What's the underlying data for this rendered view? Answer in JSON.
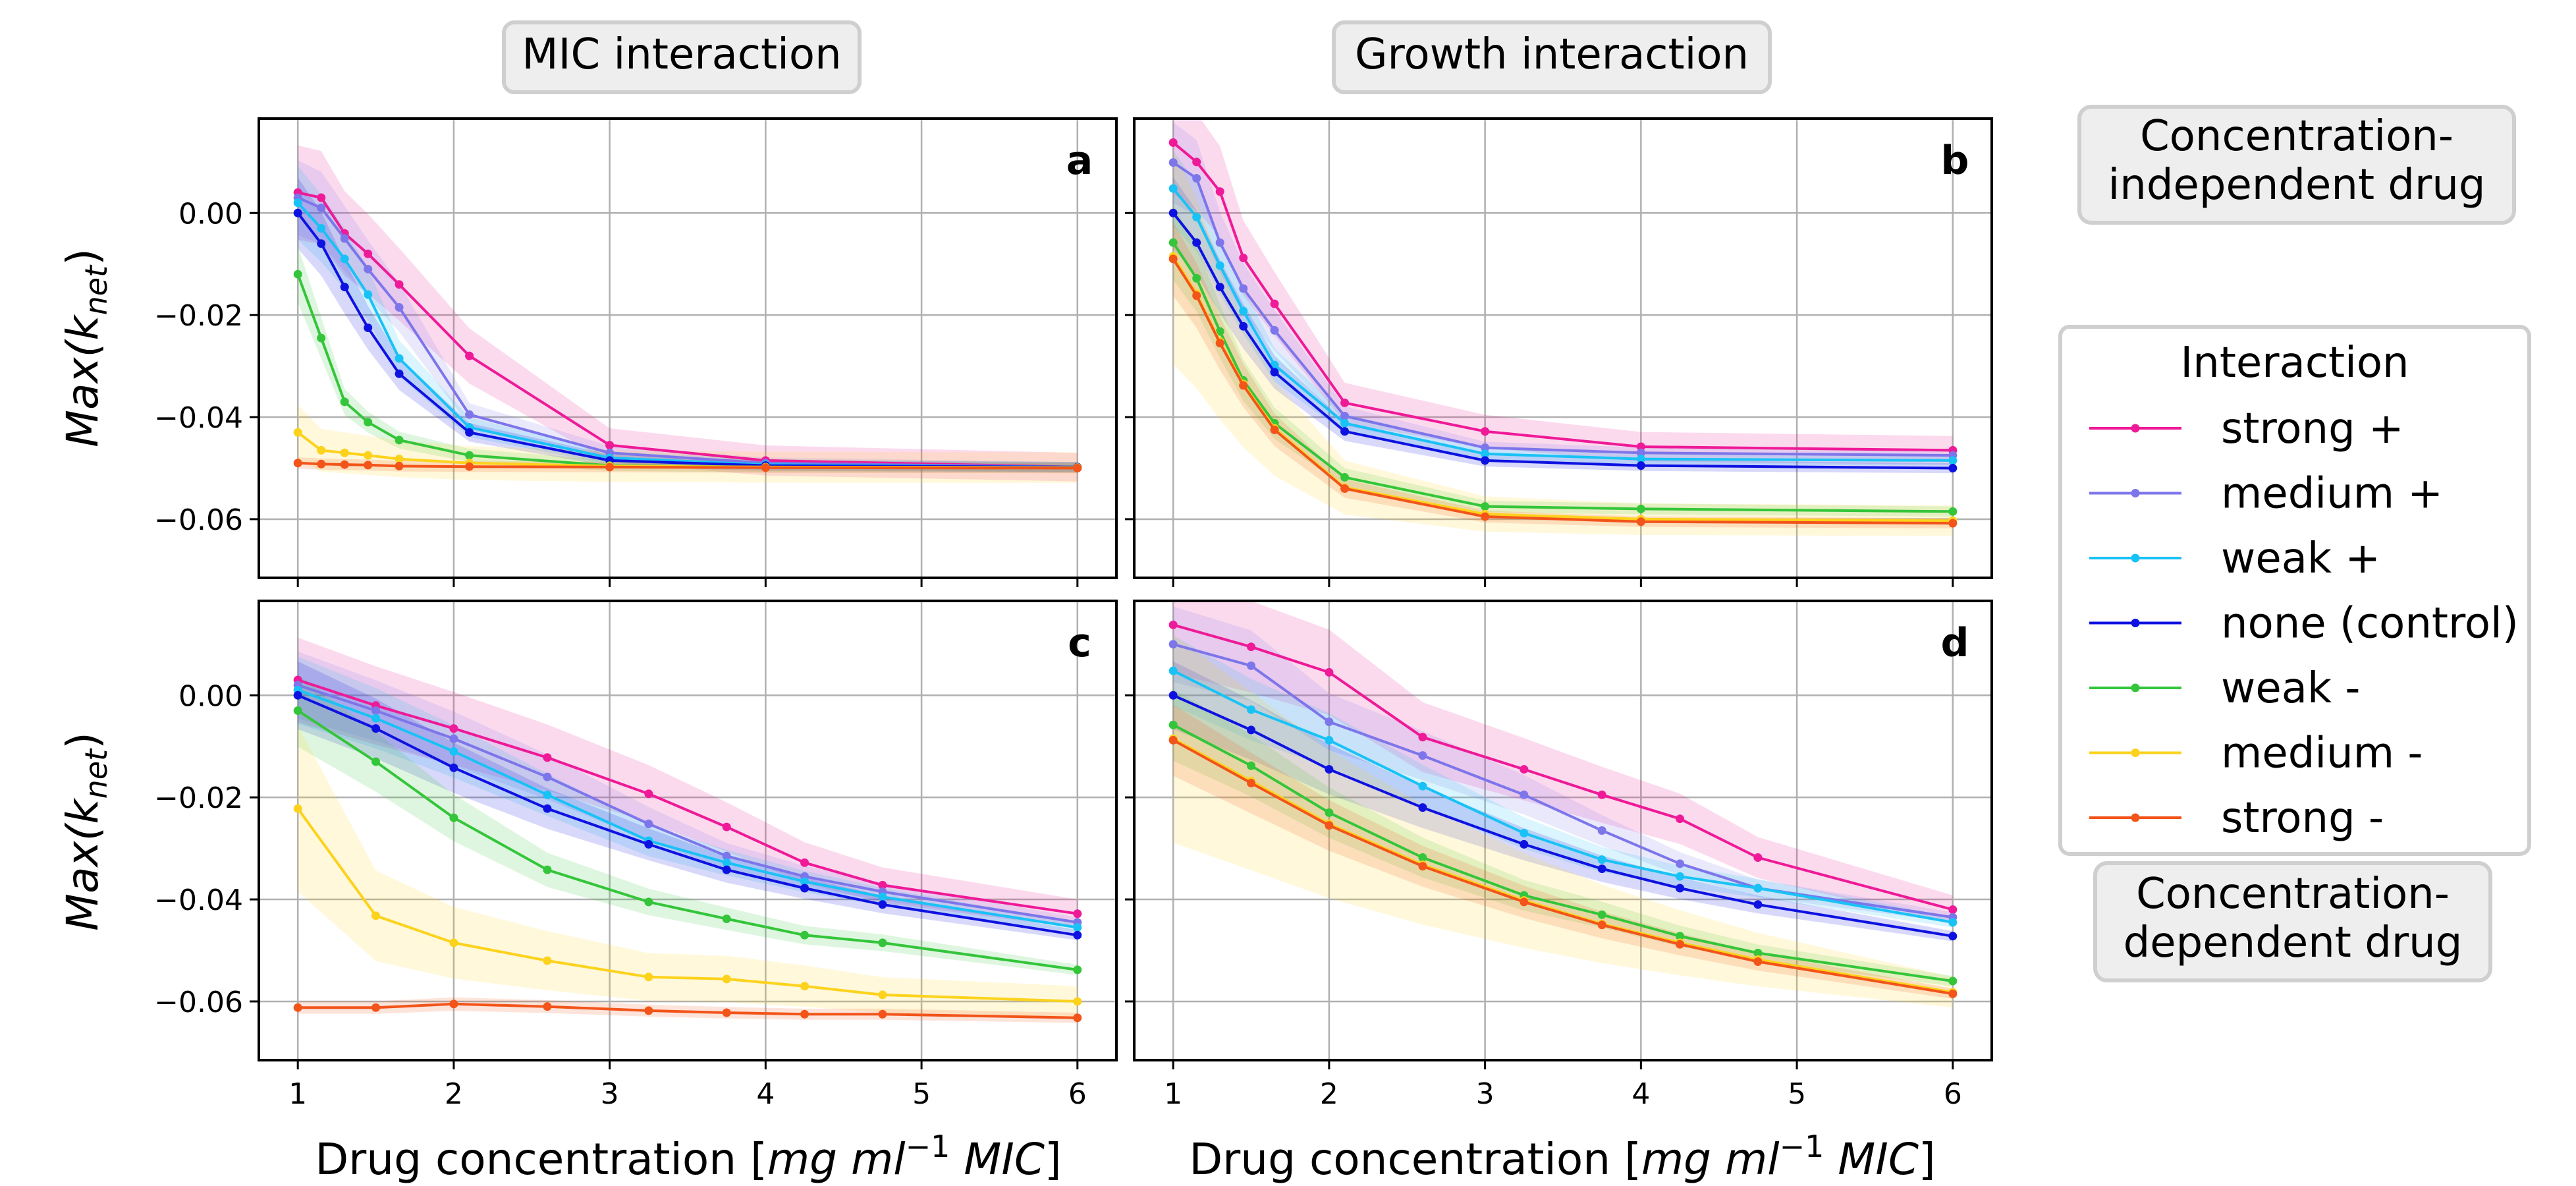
{
  "figure": {
    "col_titles": [
      "MIC interaction",
      "Growth interaction"
    ],
    "legend": {
      "title": "Interaction",
      "entries": [
        "strong +",
        "medium +",
        "weak +",
        "none (control)",
        "weak -",
        "medium -",
        "strong -"
      ]
    },
    "side_labels": {
      "top": [
        "Concentration-",
        " independent drug"
      ],
      "bottom": [
        "Concentration-",
        "dependent drug"
      ]
    },
    "xlabel_prefix": "Drug concentration [",
    "xlabel_units": "mg ml",
    "xlabel_exp": "−1",
    "xlabel_suffix_italic": " MIC",
    "xlabel_close": "]",
    "ylabel_main": "Max(k",
    "ylabel_sub": "net",
    "ylabel_close": ")"
  },
  "series_colors": {
    "strong +": "#ee1a97",
    "medium +": "#7d75ea",
    "weak +": "#19c2f5",
    "none (control)": "#0e12e0",
    "weak -": "#34c53a",
    "medium -": "#fcd21c",
    "strong -": "#f2541a"
  },
  "chart_data": [
    {
      "panel": "a",
      "type": "line",
      "xlabel": "Drug concentration [mg ml−1 MIC]",
      "ylabel": "Max(knet)",
      "xlim": [
        0.75,
        6.25
      ],
      "ylim": [
        -0.0715,
        0.0185
      ],
      "xticks": [
        1,
        2,
        3,
        4,
        5,
        6
      ],
      "yticks": [
        0.0,
        -0.02,
        -0.04,
        -0.06
      ],
      "ytick_labels": [
        "0.00",
        "−0.02",
        "−0.04",
        "−0.06"
      ],
      "grid": true,
      "series": [
        {
          "name": "strong +",
          "x": [
            1,
            1.15,
            1.3,
            1.45,
            1.65,
            2.1,
            3,
            4,
            6
          ],
          "y": [
            0.004,
            0.003,
            -0.004,
            -0.008,
            -0.014,
            -0.028,
            -0.0455,
            -0.0485,
            -0.0498
          ]
        },
        {
          "name": "medium +",
          "x": [
            1,
            1.15,
            1.3,
            1.45,
            1.65,
            2.1,
            3,
            4,
            6
          ],
          "y": [
            0.003,
            0.001,
            -0.005,
            -0.011,
            -0.0185,
            -0.0395,
            -0.047,
            -0.049,
            -0.0498
          ]
        },
        {
          "name": "weak +",
          "x": [
            1,
            1.15,
            1.3,
            1.45,
            1.65,
            2.1,
            3,
            4,
            6
          ],
          "y": [
            0.002,
            -0.003,
            -0.009,
            -0.016,
            -0.0285,
            -0.042,
            -0.048,
            -0.0493,
            -0.0498
          ]
        },
        {
          "name": "none (control)",
          "x": [
            1,
            1.15,
            1.3,
            1.45,
            1.65,
            2.1,
            3,
            4,
            6
          ],
          "y": [
            0.0,
            -0.006,
            -0.0145,
            -0.0225,
            -0.0315,
            -0.043,
            -0.0485,
            -0.0495,
            -0.0498
          ]
        },
        {
          "name": "weak -",
          "x": [
            1,
            1.15,
            1.3,
            1.45,
            1.65,
            2.1,
            3,
            4,
            6
          ],
          "y": [
            -0.012,
            -0.0245,
            -0.037,
            -0.041,
            -0.0445,
            -0.0475,
            -0.0495,
            -0.0498,
            -0.0499
          ]
        },
        {
          "name": "medium -",
          "x": [
            1,
            1.15,
            1.3,
            1.45,
            1.65,
            2.1,
            3,
            4,
            6
          ],
          "y": [
            -0.043,
            -0.0465,
            -0.047,
            -0.0475,
            -0.0482,
            -0.049,
            -0.0496,
            -0.0498,
            -0.0499
          ]
        },
        {
          "name": "strong -",
          "x": [
            1,
            1.15,
            1.3,
            1.45,
            1.65,
            2.1,
            3,
            4,
            6
          ],
          "y": [
            -0.049,
            -0.0492,
            -0.0493,
            -0.0494,
            -0.0496,
            -0.0497,
            -0.0498,
            -0.0499,
            -0.05
          ]
        }
      ]
    },
    {
      "panel": "b",
      "type": "line",
      "xlabel": "Drug concentration [mg ml−1 MIC]",
      "ylabel": "Max(knet)",
      "xlim": [
        0.75,
        6.25
      ],
      "ylim": [
        -0.0715,
        0.0185
      ],
      "xticks": [
        1,
        2,
        3,
        4,
        5,
        6
      ],
      "yticks": [
        0.0,
        -0.02,
        -0.04,
        -0.06
      ],
      "grid": true,
      "series": [
        {
          "name": "strong +",
          "x": [
            1,
            1.15,
            1.3,
            1.45,
            1.65,
            2.1,
            3,
            4,
            6
          ],
          "y": [
            0.0138,
            0.01,
            0.0042,
            -0.0088,
            -0.0178,
            -0.0372,
            -0.0428,
            -0.0458,
            -0.0465
          ]
        },
        {
          "name": "medium +",
          "x": [
            1,
            1.15,
            1.3,
            1.45,
            1.65,
            2.1,
            3,
            4,
            6
          ],
          "y": [
            0.0099,
            0.0068,
            -0.0058,
            -0.0148,
            -0.023,
            -0.0398,
            -0.046,
            -0.047,
            -0.0475
          ]
        },
        {
          "name": "weak +",
          "x": [
            1,
            1.15,
            1.3,
            1.45,
            1.65,
            2.1,
            3,
            4,
            6
          ],
          "y": [
            0.0048,
            -0.0008,
            -0.0103,
            -0.0192,
            -0.0298,
            -0.0412,
            -0.0472,
            -0.0482,
            -0.0485
          ]
        },
        {
          "name": "none (control)",
          "x": [
            1,
            1.15,
            1.3,
            1.45,
            1.65,
            2.1,
            3,
            4,
            6
          ],
          "y": [
            0.0,
            -0.0058,
            -0.0145,
            -0.0222,
            -0.0312,
            -0.0428,
            -0.0485,
            -0.0495,
            -0.05
          ]
        },
        {
          "name": "weak -",
          "x": [
            1,
            1.15,
            1.3,
            1.45,
            1.65,
            2.1,
            3,
            4,
            6
          ],
          "y": [
            -0.0058,
            -0.0128,
            -0.0232,
            -0.0328,
            -0.0412,
            -0.0518,
            -0.0575,
            -0.058,
            -0.0585
          ]
        },
        {
          "name": "medium -",
          "x": [
            1,
            1.15,
            1.3,
            1.45,
            1.65,
            2.1,
            3,
            4,
            6
          ],
          "y": [
            -0.0085,
            -0.0158,
            -0.0252,
            -0.0335,
            -0.0422,
            -0.0538,
            -0.059,
            -0.06,
            -0.0603
          ]
        },
        {
          "name": "strong -",
          "x": [
            1,
            1.15,
            1.3,
            1.45,
            1.65,
            2.1,
            3,
            4,
            6
          ],
          "y": [
            -0.009,
            -0.0162,
            -0.0255,
            -0.0338,
            -0.0425,
            -0.054,
            -0.0595,
            -0.0605,
            -0.0608
          ]
        }
      ]
    },
    {
      "panel": "c",
      "type": "line",
      "xlabel": "Drug concentration [mg ml−1 MIC]",
      "ylabel": "Max(knet)",
      "xlim": [
        0.75,
        6.25
      ],
      "ylim": [
        -0.0715,
        0.0185
      ],
      "xticks": [
        1,
        2,
        3,
        4,
        5,
        6
      ],
      "yticks": [
        0.0,
        -0.02,
        -0.04,
        -0.06
      ],
      "ytick_labels": [
        "0.00",
        "−0.02",
        "−0.04",
        "−0.06"
      ],
      "grid": true,
      "series": [
        {
          "name": "strong +",
          "x": [
            1,
            1.5,
            2,
            2.6,
            3.25,
            3.75,
            4.25,
            4.75,
            6
          ],
          "y": [
            0.003,
            -0.002,
            -0.0065,
            -0.0122,
            -0.0193,
            -0.0258,
            -0.0328,
            -0.0372,
            -0.0428
          ]
        },
        {
          "name": "medium +",
          "x": [
            1,
            1.5,
            2,
            2.6,
            3.25,
            3.75,
            4.25,
            4.75,
            6
          ],
          "y": [
            0.002,
            -0.003,
            -0.0085,
            -0.016,
            -0.0252,
            -0.0315,
            -0.0355,
            -0.0385,
            -0.0445
          ]
        },
        {
          "name": "weak +",
          "x": [
            1,
            1.5,
            2,
            2.6,
            3.25,
            3.75,
            4.25,
            4.75,
            6
          ],
          "y": [
            0.001,
            -0.0045,
            -0.011,
            -0.0195,
            -0.0285,
            -0.0328,
            -0.0365,
            -0.0395,
            -0.0455
          ]
        },
        {
          "name": "none (control)",
          "x": [
            1,
            1.5,
            2,
            2.6,
            3.25,
            3.75,
            4.25,
            4.75,
            6
          ],
          "y": [
            0.0,
            -0.0065,
            -0.0142,
            -0.0222,
            -0.0292,
            -0.0342,
            -0.0378,
            -0.041,
            -0.047
          ]
        },
        {
          "name": "weak -",
          "x": [
            1,
            1.5,
            2,
            2.6,
            3.25,
            3.75,
            4.25,
            4.75,
            6
          ],
          "y": [
            -0.003,
            -0.013,
            -0.024,
            -0.0342,
            -0.0405,
            -0.0438,
            -0.047,
            -0.0485,
            -0.0538
          ]
        },
        {
          "name": "medium -",
          "x": [
            1,
            1.5,
            2,
            2.6,
            3.25,
            3.75,
            4.25,
            4.75,
            6
          ],
          "y": [
            -0.0222,
            -0.0432,
            -0.0485,
            -0.052,
            -0.0552,
            -0.0556,
            -0.057,
            -0.0587,
            -0.06
          ]
        },
        {
          "name": "strong -",
          "x": [
            1,
            1.5,
            2,
            2.6,
            3.25,
            3.75,
            4.25,
            4.75,
            6
          ],
          "y": [
            -0.0612,
            -0.0612,
            -0.0605,
            -0.061,
            -0.0618,
            -0.0622,
            -0.0625,
            -0.0625,
            -0.0632
          ]
        }
      ]
    },
    {
      "panel": "d",
      "type": "line",
      "xlabel": "Drug concentration [mg ml−1 MIC]",
      "ylabel": "Max(knet)",
      "xlim": [
        0.75,
        6.25
      ],
      "ylim": [
        -0.0715,
        0.0185
      ],
      "xticks": [
        1,
        2,
        3,
        4,
        5,
        6
      ],
      "yticks": [
        0.0,
        -0.02,
        -0.04,
        -0.06
      ],
      "grid": true,
      "series": [
        {
          "name": "strong +",
          "x": [
            1,
            1.5,
            2,
            2.6,
            3.25,
            3.75,
            4.25,
            4.75,
            6
          ],
          "y": [
            0.0138,
            0.0095,
            0.0045,
            -0.0082,
            -0.0145,
            -0.0195,
            -0.0242,
            -0.0318,
            -0.042
          ]
        },
        {
          "name": "medium +",
          "x": [
            1,
            1.5,
            2,
            2.6,
            3.25,
            3.75,
            4.25,
            4.75,
            6
          ],
          "y": [
            0.01,
            0.0058,
            -0.0052,
            -0.0118,
            -0.0195,
            -0.0265,
            -0.033,
            -0.0378,
            -0.0435
          ]
        },
        {
          "name": "weak +",
          "x": [
            1,
            1.5,
            2,
            2.6,
            3.25,
            3.75,
            4.25,
            4.75,
            6
          ],
          "y": [
            0.0048,
            -0.0028,
            -0.0088,
            -0.0178,
            -0.027,
            -0.0322,
            -0.0355,
            -0.0378,
            -0.0445
          ]
        },
        {
          "name": "none (control)",
          "x": [
            1,
            1.5,
            2,
            2.6,
            3.25,
            3.75,
            4.25,
            4.75,
            6
          ],
          "y": [
            0.0,
            -0.0068,
            -0.0145,
            -0.022,
            -0.0292,
            -0.034,
            -0.0378,
            -0.041,
            -0.0472
          ]
        },
        {
          "name": "weak -",
          "x": [
            1,
            1.5,
            2,
            2.6,
            3.25,
            3.75,
            4.25,
            4.75,
            6
          ],
          "y": [
            -0.0058,
            -0.0138,
            -0.023,
            -0.0318,
            -0.0392,
            -0.043,
            -0.0472,
            -0.0505,
            -0.056
          ]
        },
        {
          "name": "medium -",
          "x": [
            1,
            1.5,
            2,
            2.6,
            3.25,
            3.75,
            4.25,
            4.75,
            6
          ],
          "y": [
            -0.0085,
            -0.0168,
            -0.0252,
            -0.0332,
            -0.0402,
            -0.0448,
            -0.0485,
            -0.0518,
            -0.0582
          ]
        },
        {
          "name": "strong -",
          "x": [
            1,
            1.5,
            2,
            2.6,
            3.25,
            3.75,
            4.25,
            4.75,
            6
          ],
          "y": [
            -0.0088,
            -0.0172,
            -0.0255,
            -0.0335,
            -0.0405,
            -0.045,
            -0.0488,
            -0.0522,
            -0.0585
          ]
        }
      ]
    }
  ]
}
